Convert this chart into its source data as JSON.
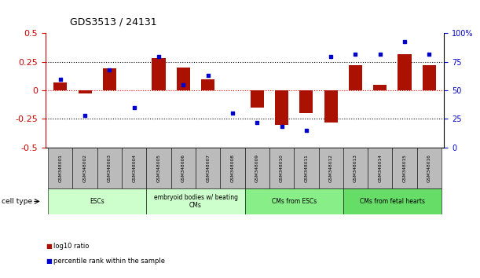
{
  "title": "GDS3513 / 24131",
  "samples": [
    "GSM348001",
    "GSM348002",
    "GSM348003",
    "GSM348004",
    "GSM348005",
    "GSM348006",
    "GSM348007",
    "GSM348008",
    "GSM348009",
    "GSM348010",
    "GSM348011",
    "GSM348012",
    "GSM348013",
    "GSM348014",
    "GSM348015",
    "GSM348016"
  ],
  "log10_ratio": [
    0.07,
    -0.03,
    0.19,
    0.0,
    0.28,
    0.2,
    0.1,
    0.0,
    -0.15,
    -0.3,
    -0.2,
    -0.28,
    0.22,
    0.05,
    0.32,
    0.22
  ],
  "percentile_rank": [
    60,
    28,
    68,
    35,
    80,
    55,
    63,
    30,
    22,
    18,
    15,
    80,
    82,
    82,
    93,
    82
  ],
  "cell_types": [
    {
      "label": "ESCs",
      "start": 0,
      "end": 4,
      "color": "#ccffcc"
    },
    {
      "label": "embryoid bodies w/ beating\nCMs",
      "start": 4,
      "end": 8,
      "color": "#ccffcc"
    },
    {
      "label": "CMs from ESCs",
      "start": 8,
      "end": 12,
      "color": "#88ee88"
    },
    {
      "label": "CMs from fetal hearts",
      "start": 12,
      "end": 16,
      "color": "#66dd66"
    }
  ],
  "bar_color": "#aa1100",
  "dot_color": "#0000cc",
  "title_fontsize": 9,
  "tick_fontsize": 7,
  "legend_red": "log10 ratio",
  "legend_blue": "percentile rank within the sample",
  "ylim_left": [
    -0.5,
    0.5
  ],
  "ylim_right": [
    0,
    100
  ],
  "background_color": "#ffffff",
  "sample_box_color": "#bbbbbb",
  "left_tick_color": "#cc0000",
  "right_tick_color": "#0000cc"
}
